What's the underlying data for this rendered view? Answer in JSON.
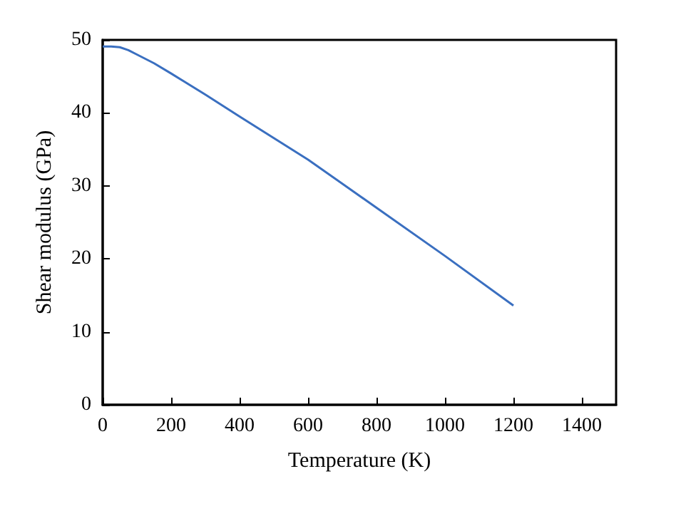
{
  "chart_data": {
    "type": "line",
    "xlabel": "Temperature (K)",
    "ylabel": "Shear modulus (GPa)",
    "x": [
      0,
      25,
      50,
      75,
      100,
      150,
      200,
      300,
      400,
      600,
      800,
      1000,
      1200
    ],
    "series": [
      {
        "color": "#3a6fc0",
        "values": [
          49.1,
          49.1,
          49.0,
          48.6,
          48.0,
          46.8,
          45.4,
          42.5,
          39.5,
          33.6,
          27.0,
          20.4,
          13.6
        ]
      }
    ],
    "xlim": [
      0,
      1500
    ],
    "xticks": [
      0,
      200,
      400,
      600,
      800,
      1000,
      1200,
      1400
    ],
    "ylim": [
      0,
      50
    ],
    "yticks": [
      0,
      10,
      20,
      30,
      40,
      50
    ],
    "grid": false,
    "marker": "none",
    "line_style": "solid"
  }
}
